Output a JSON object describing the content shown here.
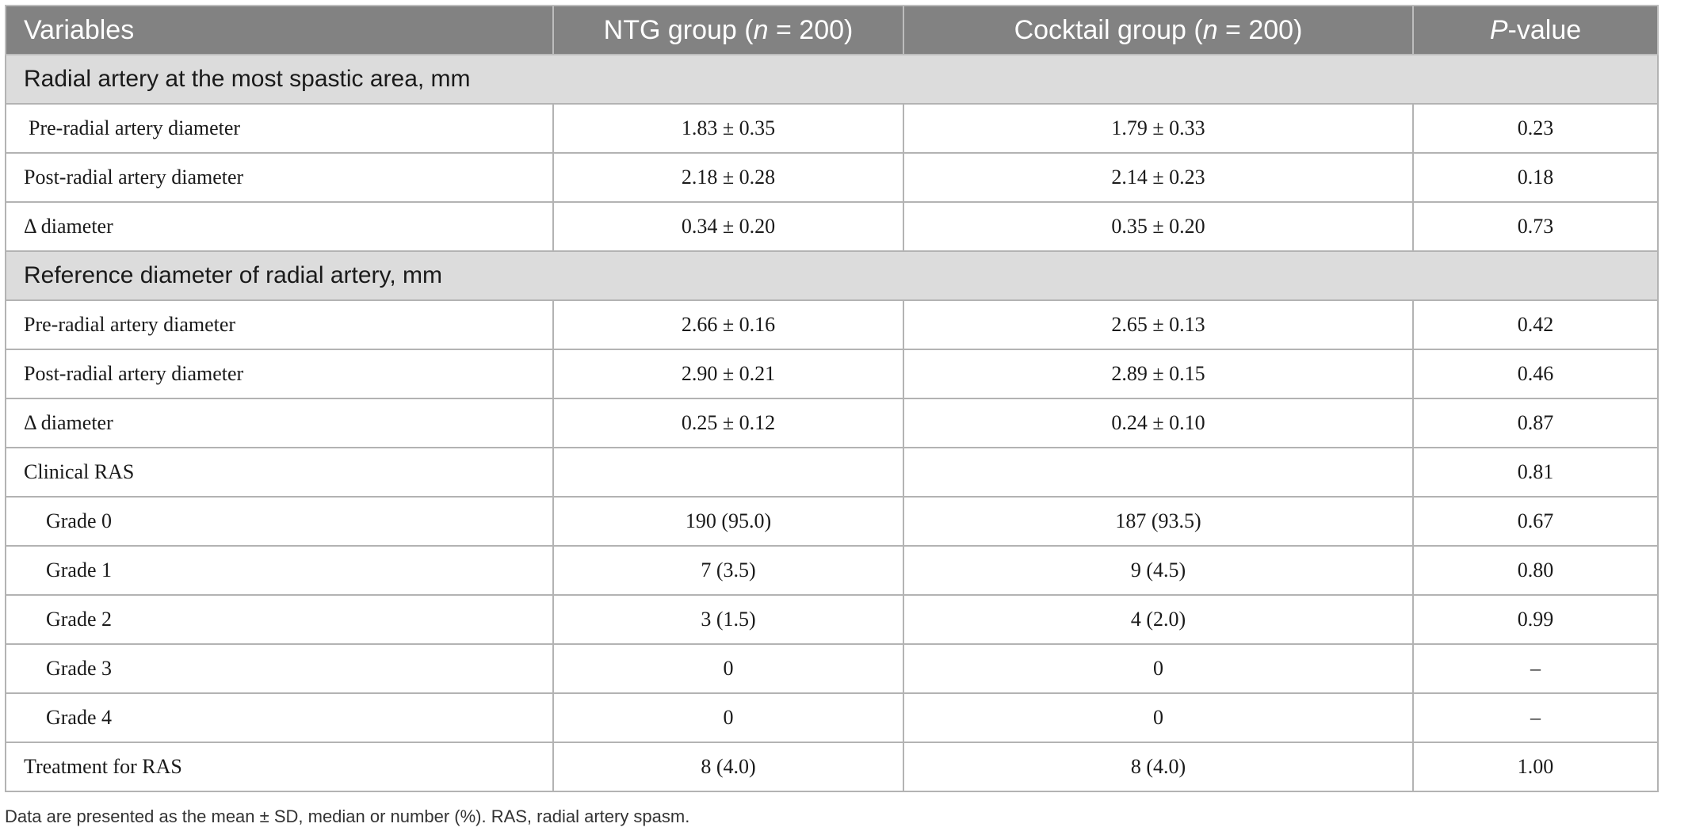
{
  "header": {
    "col_variables": "Variables",
    "col_ntg_prefix": "NTG group (",
    "col_ntg_n": "n",
    "col_ntg_suffix": " = 200)",
    "col_cocktail_prefix": "Cocktail group (",
    "col_cocktail_n": "n",
    "col_cocktail_suffix": " = 200)",
    "col_p_letter": "P",
    "col_p_suffix": "-value"
  },
  "sections": [
    {
      "title": "Radial artery at the most spastic area, mm",
      "rows": [
        {
          "label": "Pre-radial artery diameter",
          "ntg": "1.83 ± 0.35",
          "cocktail": "1.79 ± 0.33",
          "p": "0.23"
        },
        {
          "label": "Post-radial artery diameter",
          "ntg": "2.18 ± 0.28",
          "cocktail": "2.14 ± 0.23",
          "p": "0.18"
        },
        {
          "label": "Δ diameter",
          "ntg": "0.34 ± 0.20",
          "cocktail": "0.35 ± 0.20",
          "p": "0.73"
        }
      ]
    },
    {
      "title": "Reference diameter of radial artery, mm",
      "rows": [
        {
          "label": "Pre-radial artery diameter",
          "ntg": "2.66 ± 0.16",
          "cocktail": "2.65 ± 0.13",
          "p": "0.42"
        },
        {
          "label": "Post-radial artery diameter",
          "ntg": "2.90 ± 0.21",
          "cocktail": "2.89 ± 0.15",
          "p": "0.46"
        },
        {
          "label": "Δ diameter",
          "ntg": "0.25 ± 0.12",
          "cocktail": "0.24 ± 0.10",
          "p": "0.87"
        }
      ]
    }
  ],
  "clinical": {
    "label": "Clinical RAS",
    "ntg": "",
    "cocktail": "",
    "p": "0.81",
    "grades": [
      {
        "label": "Grade 0",
        "ntg": "190 (95.0)",
        "cocktail": "187 (93.5)",
        "p": "0.67"
      },
      {
        "label": "Grade 1",
        "ntg": "7 (3.5)",
        "cocktail": "9 (4.5)",
        "p": "0.80"
      },
      {
        "label": "Grade 2",
        "ntg": "3 (1.5)",
        "cocktail": "4 (2.0)",
        "p": "0.99"
      },
      {
        "label": "Grade 3",
        "ntg": "0",
        "cocktail": "0",
        "p": "–"
      },
      {
        "label": "Grade 4",
        "ntg": "0",
        "cocktail": "0",
        "p": "–"
      }
    ]
  },
  "treatment": {
    "label": "Treatment for RAS",
    "ntg": "8 (4.0)",
    "cocktail": "8 (4.0)",
    "p": "1.00"
  },
  "footnote": "Data are presented as the mean ± SD, median or number (%). RAS, radial artery spasm."
}
